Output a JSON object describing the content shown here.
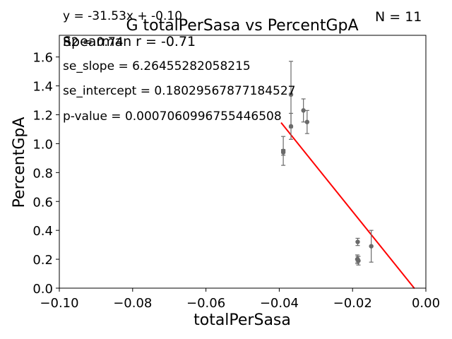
{
  "chart_data": {
    "type": "scatter",
    "title": "G totalPerSasa vs PercentGpA",
    "xlabel": "totalPerSasa",
    "ylabel": "PercentGpA",
    "xlim": [
      -0.1,
      0.0
    ],
    "ylim": [
      0.0,
      1.75
    ],
    "xticks": [
      -0.1,
      -0.08,
      -0.06,
      -0.04,
      -0.02,
      0.0
    ],
    "xtick_labels": [
      "−0.10",
      "−0.08",
      "−0.06",
      "−0.04",
      "−0.02",
      "0.00"
    ],
    "yticks": [
      0.0,
      0.2,
      0.4,
      0.6,
      0.8,
      1.0,
      1.2,
      1.4,
      1.6
    ],
    "ytick_labels": [
      "0.0",
      "0.2",
      "0.4",
      "0.6",
      "0.8",
      "1.0",
      "1.2",
      "1.4",
      "1.6"
    ],
    "grid": false,
    "points": [
      {
        "x": -0.0389,
        "y": 0.95,
        "err": 0.1
      },
      {
        "x": -0.0389,
        "y": 0.94,
        "err": 0.02
      },
      {
        "x": -0.0368,
        "y": 1.34,
        "err": 0.23
      },
      {
        "x": -0.0368,
        "y": 1.12,
        "err": 0.09
      },
      {
        "x": -0.0334,
        "y": 1.23,
        "err": 0.08
      },
      {
        "x": -0.0324,
        "y": 1.15,
        "err": 0.08
      },
      {
        "x": -0.0186,
        "y": 0.32,
        "err": 0.025
      },
      {
        "x": -0.0187,
        "y": 0.2,
        "err": 0.03
      },
      {
        "x": -0.0184,
        "y": 0.19,
        "err": 0.03
      },
      {
        "x": -0.0186,
        "y": 0.2,
        "err": 0.02
      },
      {
        "x": -0.0149,
        "y": 0.29,
        "err": 0.11
      }
    ],
    "fit_line": {
      "x": [
        -0.0395,
        -0.0031
      ],
      "color": "#ff0000"
    },
    "point_color": "#6a6a6a",
    "annotations": {
      "equation": "y = -31.53x + -0.10",
      "r2": "R2 = 0.74",
      "spearman": "Spearman r = -0.71",
      "se_slope": "se_slope = 6.26455282058215",
      "se_intercept": "se_intercept = 0.18029567877184527",
      "p_value": "p-value = 0.0007060996755446508",
      "n": "N = 11"
    }
  }
}
